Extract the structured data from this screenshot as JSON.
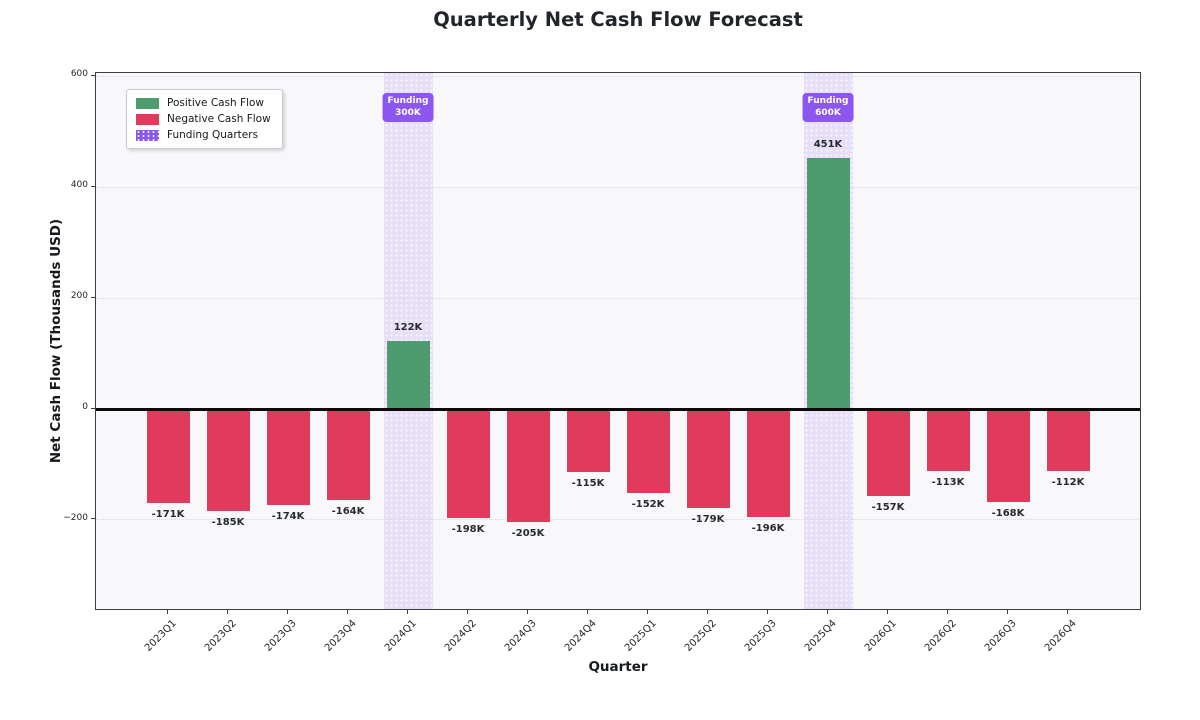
{
  "chart_data": {
    "type": "bar",
    "title": "Quarterly Net Cash Flow Forecast",
    "xlabel": "Quarter",
    "ylabel": "Net Cash Flow (Thousands USD)",
    "categories": [
      "2023Q1",
      "2023Q2",
      "2023Q3",
      "2023Q4",
      "2024Q1",
      "2024Q2",
      "2024Q3",
      "2024Q4",
      "2025Q1",
      "2025Q2",
      "2025Q3",
      "2025Q4",
      "2026Q1",
      "2026Q2",
      "2026Q3",
      "2026Q4"
    ],
    "values": [
      -171,
      -185,
      -174,
      -164,
      122,
      -198,
      -205,
      -115,
      -152,
      -179,
      -196,
      451,
      -157,
      -113,
      -168,
      -112
    ],
    "bar_labels": [
      "-171K",
      "-185K",
      "-174K",
      "-164K",
      "122K",
      "-198K",
      "-205K",
      "-115K",
      "-152K",
      "-179K",
      "-196K",
      "451K",
      "-157K",
      "-113K",
      "-168K",
      "-112K"
    ],
    "units": "Thousands USD",
    "ylim": [
      -365,
      605
    ],
    "yticks": [
      -200,
      0,
      200,
      400,
      600
    ],
    "ytick_labels": [
      "−200",
      "0",
      "200",
      "400",
      "600"
    ],
    "grid": true,
    "zero_line": true,
    "funding_bands": [
      {
        "category": "2024Q1",
        "index": 4,
        "label_line1": "Funding",
        "label_line2": "300K"
      },
      {
        "category": "2025Q4",
        "index": 11,
        "label_line1": "Funding",
        "label_line2": "600K"
      }
    ],
    "legend": {
      "position": "upper-left",
      "entries": [
        {
          "label": "Positive Cash Flow",
          "color": "#4e9b6f",
          "pattern": "solid"
        },
        {
          "label": "Negative Cash Flow",
          "color": "#e03a5c",
          "pattern": "solid"
        },
        {
          "label": "Funding Quarters",
          "color": "#8c57f0",
          "pattern": "dots"
        }
      ]
    },
    "colors": {
      "positive": "#4e9b6f",
      "negative": "#e03a5c",
      "funding_band": "#e6dff7",
      "funding_badge": "#8c57f0",
      "plot_background": "#f8f8fb",
      "figure_background": "#ffffff",
      "gridline": "#d9d9e2",
      "zero_line": "#0a0a0a",
      "title_text": "#21252b"
    }
  }
}
